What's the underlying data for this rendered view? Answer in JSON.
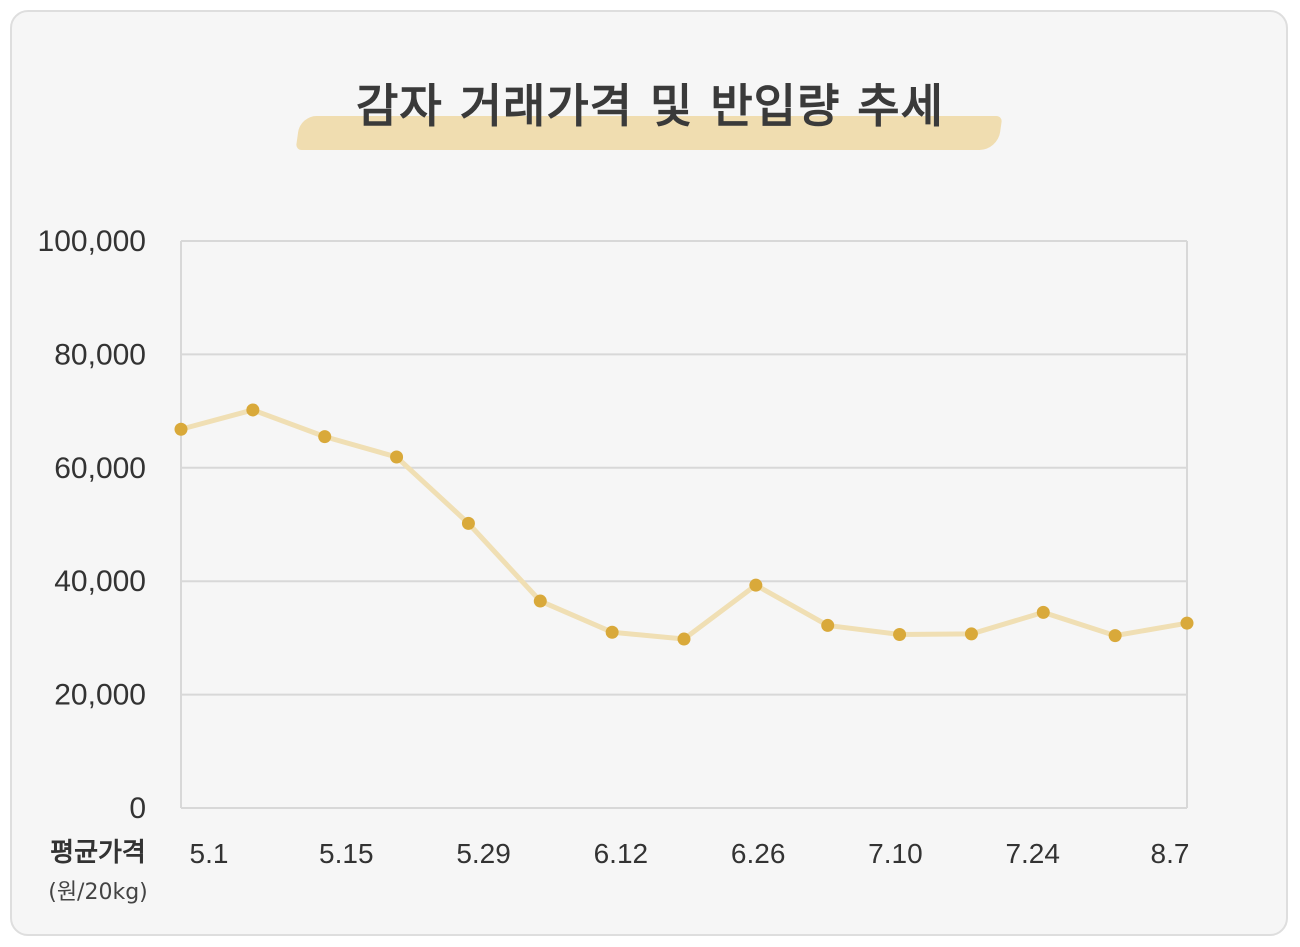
{
  "chart_data": {
    "type": "line",
    "title": "감자 거래가격 및 반입량 추세",
    "ylabel": "평균가격",
    "yunit": "(원/20kg)",
    "xlabel": "",
    "ylim": [
      0,
      100000
    ],
    "yticks": [
      0,
      20000,
      40000,
      60000,
      80000,
      100000
    ],
    "ytick_labels": [
      "0",
      "20,000",
      "40,000",
      "60,000",
      "80,000",
      "100,000"
    ],
    "x_tick_labels": [
      "5.1",
      "5.15",
      "5.29",
      "6.12",
      "6.26",
      "7.10",
      "7.24",
      "8.7"
    ],
    "grid": true,
    "series": [
      {
        "values": [
          66800,
          70200,
          65500,
          61900,
          50200,
          36500,
          31000,
          29800,
          39300,
          32200,
          30600,
          30700,
          34500,
          30400,
          32600
        ],
        "color": "#d9a93a",
        "line_color": "#f0dfb4"
      }
    ]
  }
}
